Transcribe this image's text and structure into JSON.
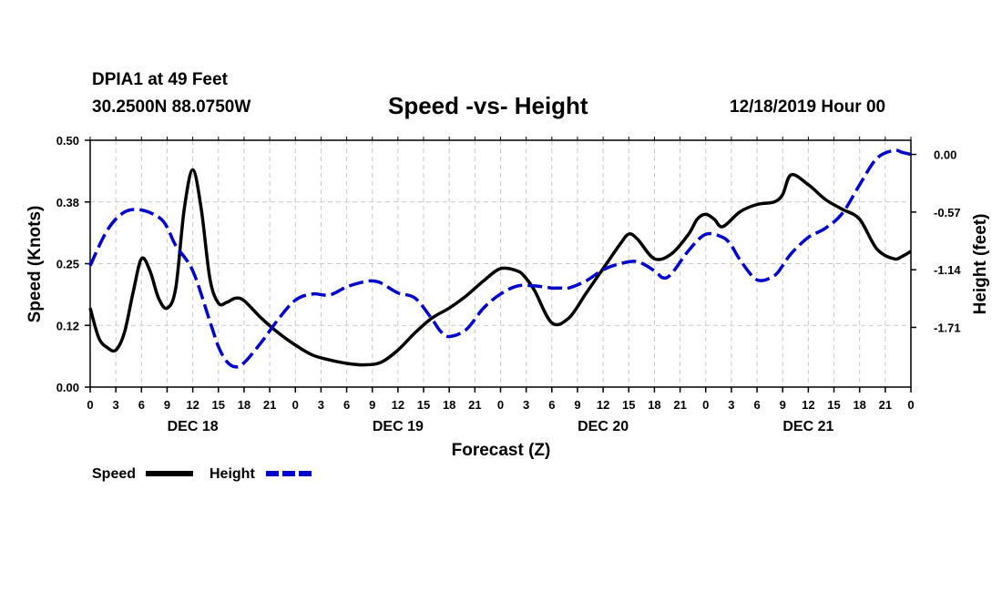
{
  "header": {
    "station": "DPIA1 at 49 Feet",
    "coords": "30.2500N 88.0750W",
    "title": "Speed -vs- Height",
    "date": "12/18/2019 Hour 00"
  },
  "colors": {
    "speed": "#000000",
    "height": "#0000cc",
    "grid": "#c8c8c8"
  },
  "chart_data": {
    "type": "line",
    "title": "Speed -vs- Height",
    "xlabel": "Forecast (Z)",
    "x_unit": "hours since 12/18/2019 00Z",
    "xlim": [
      0,
      96
    ],
    "xtick_values": [
      0,
      3,
      6,
      9,
      12,
      15,
      18,
      21,
      24,
      27,
      30,
      33,
      36,
      39,
      42,
      45,
      48,
      51,
      54,
      57,
      60,
      63,
      66,
      69,
      72,
      75,
      78,
      81,
      84,
      87,
      90,
      93,
      96
    ],
    "xtick_labels": [
      "0",
      "3",
      "6",
      "9",
      "12",
      "15",
      "18",
      "21",
      "0",
      "3",
      "6",
      "9",
      "12",
      "15",
      "18",
      "21",
      "0",
      "3",
      "6",
      "9",
      "12",
      "15",
      "18",
      "21",
      "0",
      "3",
      "6",
      "9",
      "12",
      "15",
      "18",
      "21",
      "0"
    ],
    "date_labels": [
      {
        "hour": 12,
        "label": "DEC 18"
      },
      {
        "hour": 36,
        "label": "DEC 19"
      },
      {
        "hour": 60,
        "label": "DEC 20"
      },
      {
        "hour": 84,
        "label": "DEC 21"
      }
    ],
    "left_axis": {
      "label": "Speed (Knots)",
      "ylim": [
        0,
        0.5
      ],
      "ticks": [
        0,
        0.125,
        0.25,
        0.375,
        0.5
      ],
      "tick_labels": [
        "0.00",
        "0.12",
        "0.25",
        "0.38",
        "0.50"
      ]
    },
    "right_axis": {
      "label": "Height (feet)",
      "ylim": [
        -2.3,
        0.14
      ],
      "ticks": [
        0.0,
        -0.57,
        -1.14,
        -1.71
      ],
      "tick_labels": [
        "0.00",
        "-0.57",
        "-1.14",
        "-1.71"
      ]
    },
    "legend": [
      {
        "name": "Speed",
        "style": "solid"
      },
      {
        "name": "Height",
        "style": "dashed"
      }
    ],
    "series": [
      {
        "name": "Speed",
        "axis": "left",
        "style": "solid",
        "x": [
          0,
          1,
          2,
          3,
          4,
          5,
          6,
          7,
          8,
          9,
          10,
          11,
          12,
          13,
          14,
          15,
          16,
          17,
          18,
          20,
          22,
          24,
          26,
          28,
          30,
          32,
          34,
          36,
          38,
          40,
          42,
          44,
          46,
          48,
          50,
          51,
          52,
          54,
          56,
          58,
          60,
          62,
          63,
          64,
          66,
          68,
          70,
          71,
          72,
          73,
          74,
          76,
          78,
          80,
          81,
          82,
          84,
          86,
          88,
          90,
          92,
          94,
          95,
          96
        ],
        "y": [
          0.16,
          0.1,
          0.08,
          0.075,
          0.11,
          0.19,
          0.26,
          0.235,
          0.18,
          0.16,
          0.2,
          0.36,
          0.44,
          0.36,
          0.22,
          0.17,
          0.172,
          0.18,
          0.175,
          0.14,
          0.11,
          0.085,
          0.065,
          0.055,
          0.048,
          0.045,
          0.05,
          0.075,
          0.11,
          0.14,
          0.16,
          0.185,
          0.215,
          0.24,
          0.235,
          0.22,
          0.195,
          0.13,
          0.14,
          0.19,
          0.24,
          0.29,
          0.31,
          0.3,
          0.26,
          0.27,
          0.31,
          0.34,
          0.35,
          0.34,
          0.325,
          0.355,
          0.37,
          0.375,
          0.39,
          0.43,
          0.41,
          0.38,
          0.36,
          0.34,
          0.28,
          0.26,
          0.265,
          0.275
        ]
      },
      {
        "name": "Height",
        "axis": "right",
        "style": "dashed",
        "x": [
          0,
          2,
          4,
          6,
          8,
          9,
          10,
          12,
          14,
          15,
          16,
          17,
          18,
          20,
          22,
          24,
          26,
          28,
          30,
          32,
          33,
          34,
          36,
          38,
          40,
          41,
          42,
          44,
          46,
          48,
          50,
          52,
          54,
          55,
          56,
          58,
          60,
          62,
          64,
          66,
          67,
          68,
          70,
          72,
          74,
          75,
          76,
          78,
          80,
          81,
          82,
          84,
          86,
          88,
          90,
          92,
          94,
          95,
          96
        ],
        "y": [
          -1.1,
          -0.75,
          -0.57,
          -0.55,
          -0.62,
          -0.72,
          -0.9,
          -1.15,
          -1.65,
          -1.9,
          -2.05,
          -2.1,
          -2.06,
          -1.86,
          -1.63,
          -1.44,
          -1.38,
          -1.39,
          -1.31,
          -1.26,
          -1.25,
          -1.27,
          -1.37,
          -1.42,
          -1.63,
          -1.75,
          -1.8,
          -1.73,
          -1.52,
          -1.38,
          -1.3,
          -1.3,
          -1.32,
          -1.32,
          -1.32,
          -1.25,
          -1.14,
          -1.08,
          -1.06,
          -1.15,
          -1.22,
          -1.18,
          -0.95,
          -0.79,
          -0.82,
          -0.9,
          -1.04,
          -1.24,
          -1.2,
          -1.1,
          -0.98,
          -0.82,
          -0.73,
          -0.58,
          -0.3,
          -0.04,
          0.04,
          0.02,
          0.0
        ]
      }
    ]
  }
}
